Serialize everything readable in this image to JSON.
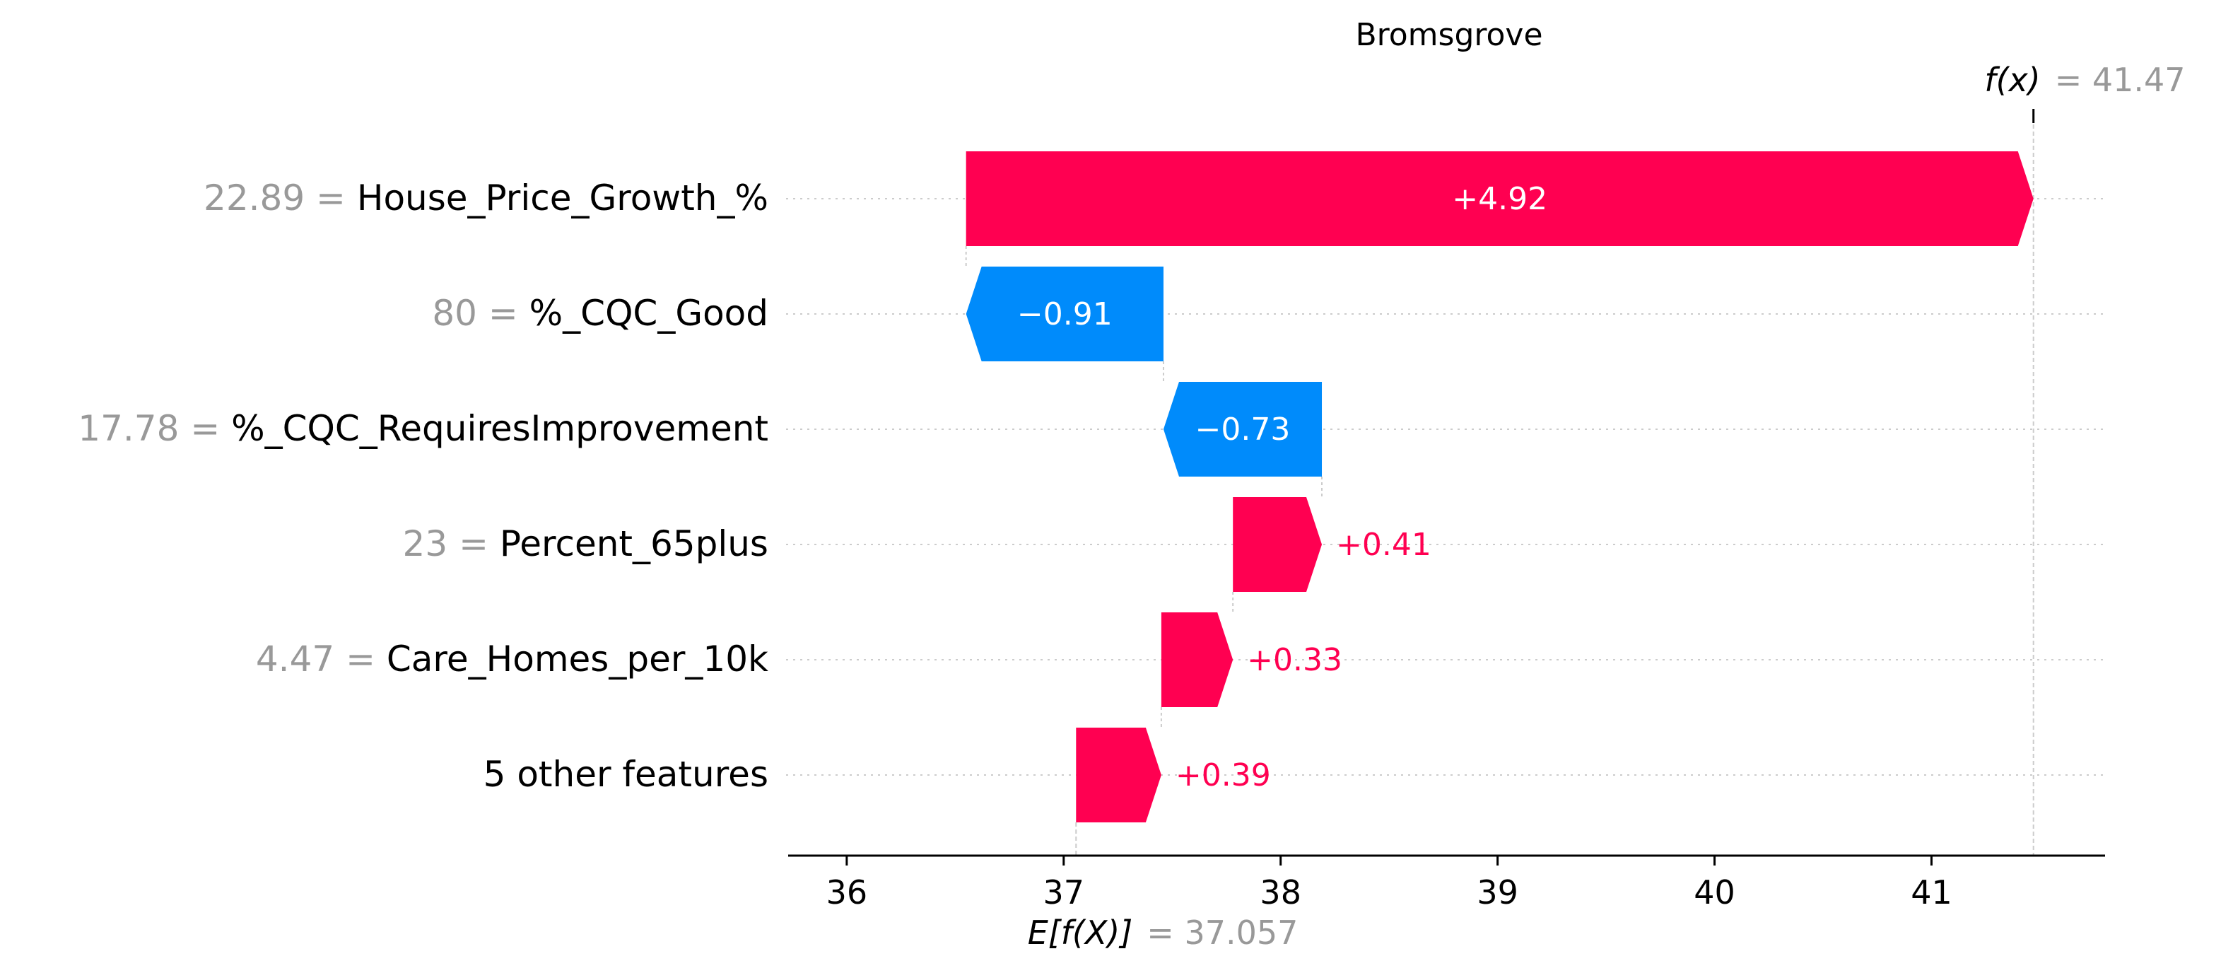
{
  "chart_data": {
    "type": "waterfall",
    "title": "Bromsgrove",
    "base_value": 37.057,
    "base_label": "E[f(X)]",
    "base_value_text": "= 37.057",
    "output_value": 41.47,
    "output_label": "f(x)",
    "output_value_text": "= 41.47",
    "xlim": [
      35.73,
      41.8
    ],
    "x_ticks": [
      36,
      37,
      38,
      39,
      40,
      41
    ],
    "features": [
      {
        "value": "22.89",
        "name": "House_Price_Growth_%",
        "contribution": 4.92,
        "start": 36.55,
        "end": 41.47,
        "label": "+4.92"
      },
      {
        "value": "80",
        "name": "%_CQC_Good",
        "contribution": -0.91,
        "start": 37.46,
        "end": 36.55,
        "label": "−0.91"
      },
      {
        "value": "17.78",
        "name": "%_CQC_RequiresImprovement",
        "contribution": -0.73,
        "start": 38.19,
        "end": 37.46,
        "label": "−0.73"
      },
      {
        "value": "23",
        "name": "Percent_65plus",
        "contribution": 0.41,
        "start": 37.78,
        "end": 38.19,
        "label": "+0.41"
      },
      {
        "value": "4.47",
        "name": "Care_Homes_per_10k",
        "contribution": 0.33,
        "start": 37.45,
        "end": 37.78,
        "label": "+0.33"
      },
      {
        "value": "",
        "name": "5 other features",
        "contribution": 0.39,
        "start": 37.057,
        "end": 37.45,
        "label": "+0.39"
      }
    ],
    "colors": {
      "positive": "#ff0051",
      "negative": "#008bfb",
      "value_gray": "#999999",
      "grid": "#cccccc",
      "axis": "#000000"
    },
    "grid": true
  }
}
